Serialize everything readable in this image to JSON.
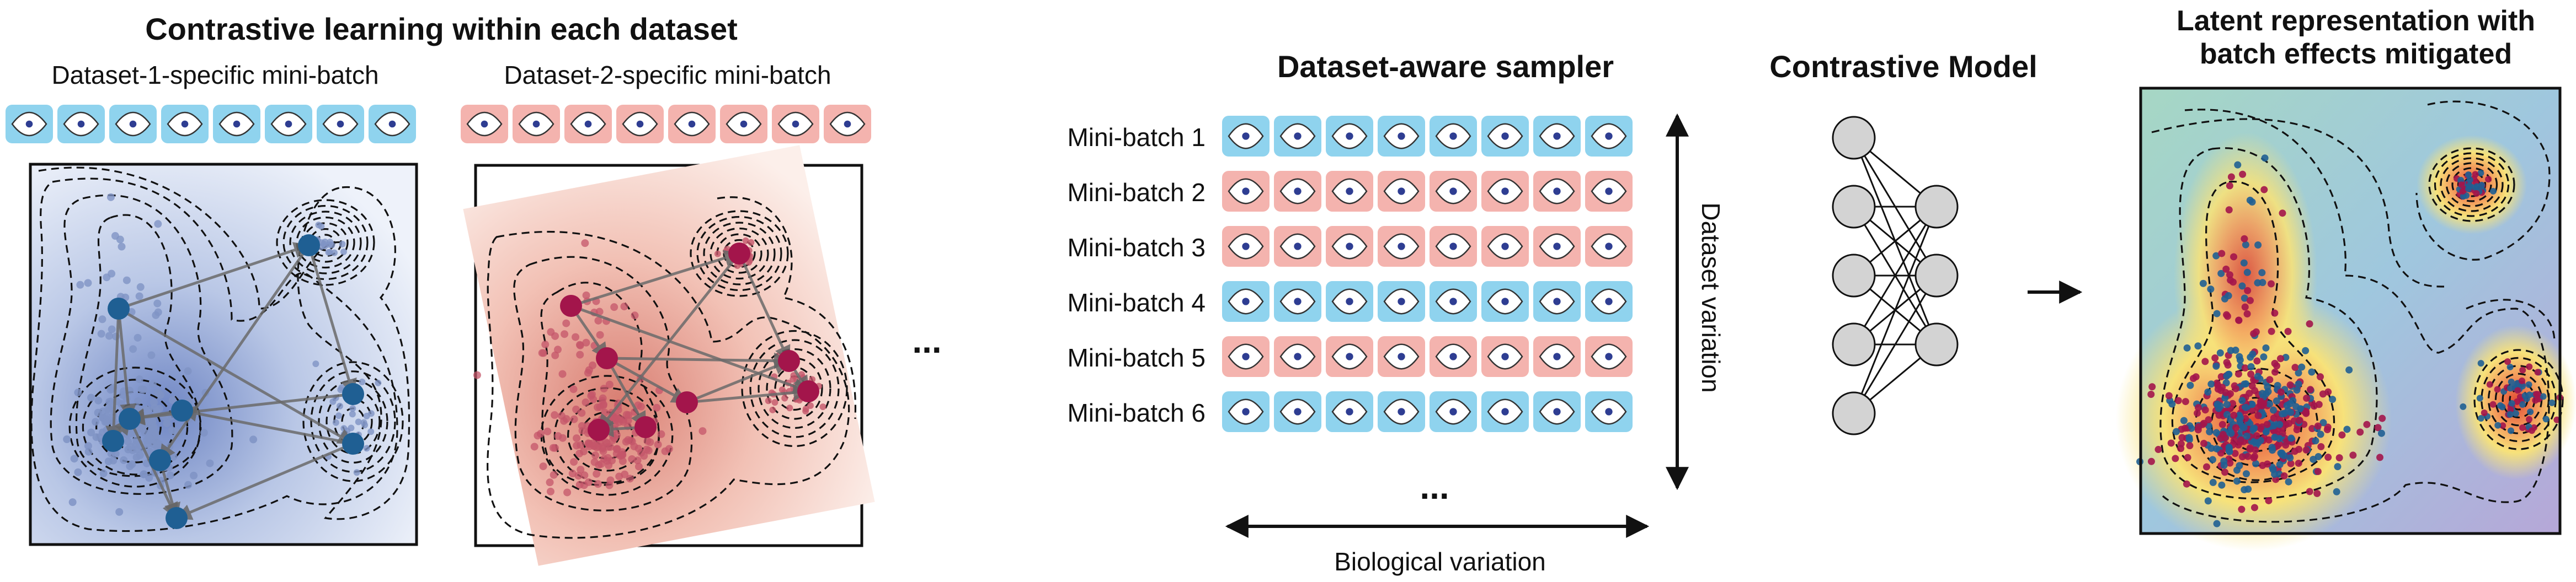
{
  "left_panel": {
    "title": "Contrastive learning within each dataset",
    "batch1_label": "Dataset-1-specific mini-batch",
    "batch2_label": "Dataset-2-specific mini-batch",
    "ellipsis": "..."
  },
  "sampler": {
    "title": "Dataset-aware sampler",
    "rows": [
      {
        "label": "Mini-batch 1",
        "dataset": "blue"
      },
      {
        "label": "Mini-batch 2",
        "dataset": "red"
      },
      {
        "label": "Mini-batch 3",
        "dataset": "red"
      },
      {
        "label": "Mini-batch 4",
        "dataset": "blue"
      },
      {
        "label": "Mini-batch 5",
        "dataset": "red"
      },
      {
        "label": "Mini-batch 6",
        "dataset": "blue"
      }
    ],
    "more": "...",
    "vertical_axis_label": "Dataset variation",
    "horizontal_axis_label": "Biological variation"
  },
  "model": {
    "title": "Contrastive Model"
  },
  "latent": {
    "title_line1": "Latent representation with",
    "title_line2": "batch effects mitigated"
  },
  "colors": {
    "blue_tile": "#8fd3ee",
    "red_tile": "#f4b3ae",
    "blue_point": "#1f5f93",
    "red_point": "#a3154b",
    "eye_dot": "#2e3d92"
  },
  "icons": {
    "cell": "eye-cell-icon",
    "arrow": "arrow-right-icon"
  }
}
